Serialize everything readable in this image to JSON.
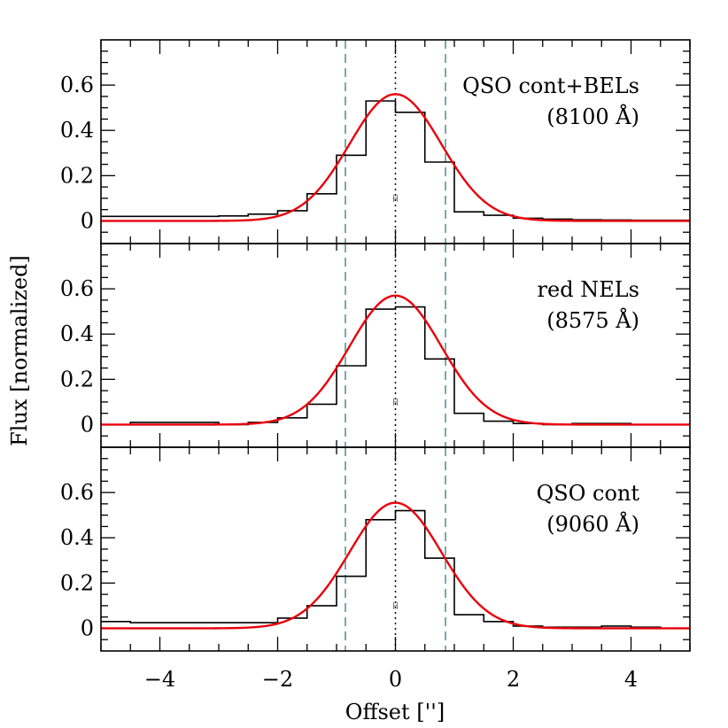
{
  "chart_data": {
    "type": "line",
    "xlabel": "Offset ['']",
    "ylabel": "Flux [normalized]",
    "xlim": [
      -5,
      5
    ],
    "ylim": [
      -0.1,
      0.8
    ],
    "x_ticks": [
      -4,
      -2,
      0,
      2,
      4
    ],
    "x_tick_labels": [
      "−4",
      "−2",
      "0",
      "2",
      "4"
    ],
    "y_ticks": [
      0,
      0.2,
      0.4,
      0.6
    ],
    "y_tick_labels": [
      "0",
      "0.2",
      "0.4",
      "0.6"
    ],
    "vlines": [
      {
        "x": -0.85,
        "style": "dashed",
        "color": "#4a8f8f"
      },
      {
        "x": 0.85,
        "style": "dashed",
        "color": "#4a8f8f"
      },
      {
        "x": 0,
        "style": "dotted",
        "color": "#000000"
      }
    ],
    "colors": {
      "histogram": "#000000",
      "gaussian_fit": "#e8000b",
      "vline_dashed": "#4a8f8f"
    },
    "panels": [
      {
        "label_line1": "QSO cont+BELs",
        "label_line2": "(8100 Å)",
        "histogram": {
          "edges": [
            -5,
            -4.5,
            -4,
            -3.5,
            -3,
            -2.5,
            -2,
            -1.5,
            -1,
            -0.5,
            0,
            0.5,
            1,
            1.5,
            2,
            2.5,
            3,
            3.5,
            4,
            4.5,
            5
          ],
          "values": [
            0.02,
            0.02,
            0.02,
            0.02,
            0.022,
            0.03,
            0.045,
            0.12,
            0.29,
            0.53,
            0.48,
            0.26,
            0.04,
            0.025,
            0.012,
            0.008,
            0.005,
            0.004,
            0.003,
            0.003
          ]
        },
        "gaussian_fit": {
          "amplitude": 0.56,
          "center": 0,
          "sigma": 0.78
        },
        "error_bar": {
          "x": 0,
          "y": 0.1,
          "half_width": 0.03
        }
      },
      {
        "label_line1": "red NELs",
        "label_line2": "(8575 Å)",
        "histogram": {
          "edges": [
            -5,
            -4.5,
            -4,
            -3.5,
            -3,
            -2.5,
            -2,
            -1.5,
            -1,
            -0.5,
            0,
            0.5,
            1,
            1.5,
            2,
            2.5,
            3,
            3.5,
            4,
            4.5,
            5
          ],
          "values": [
            0.0,
            0.01,
            0.01,
            0.01,
            0.0,
            0.01,
            0.03,
            0.09,
            0.26,
            0.51,
            0.52,
            0.29,
            0.05,
            0.015,
            0.005,
            0.0,
            0.005,
            0.005,
            0.0,
            0.0
          ]
        },
        "gaussian_fit": {
          "amplitude": 0.57,
          "center": 0,
          "sigma": 0.78
        },
        "error_bar": {
          "x": 0,
          "y": 0.1,
          "half_width": 0.03
        }
      },
      {
        "label_line1": "QSO cont",
        "label_line2": "(9060 Å)",
        "histogram": {
          "edges": [
            -5,
            -4.5,
            -4,
            -3.5,
            -3,
            -2.5,
            -2,
            -1.5,
            -1,
            -0.5,
            0,
            0.5,
            1,
            1.5,
            2,
            2.5,
            3,
            3.5,
            4,
            4.5,
            5
          ],
          "values": [
            0.03,
            0.025,
            0.025,
            0.025,
            0.025,
            0.025,
            0.045,
            0.1,
            0.23,
            0.48,
            0.52,
            0.31,
            0.06,
            0.03,
            0.01,
            0.005,
            0.005,
            0.01,
            0.005,
            0.0
          ]
        },
        "gaussian_fit": {
          "amplitude": 0.555,
          "center": 0,
          "sigma": 0.78
        },
        "error_bar": {
          "x": 0,
          "y": 0.1,
          "half_width": 0.03
        }
      }
    ]
  }
}
